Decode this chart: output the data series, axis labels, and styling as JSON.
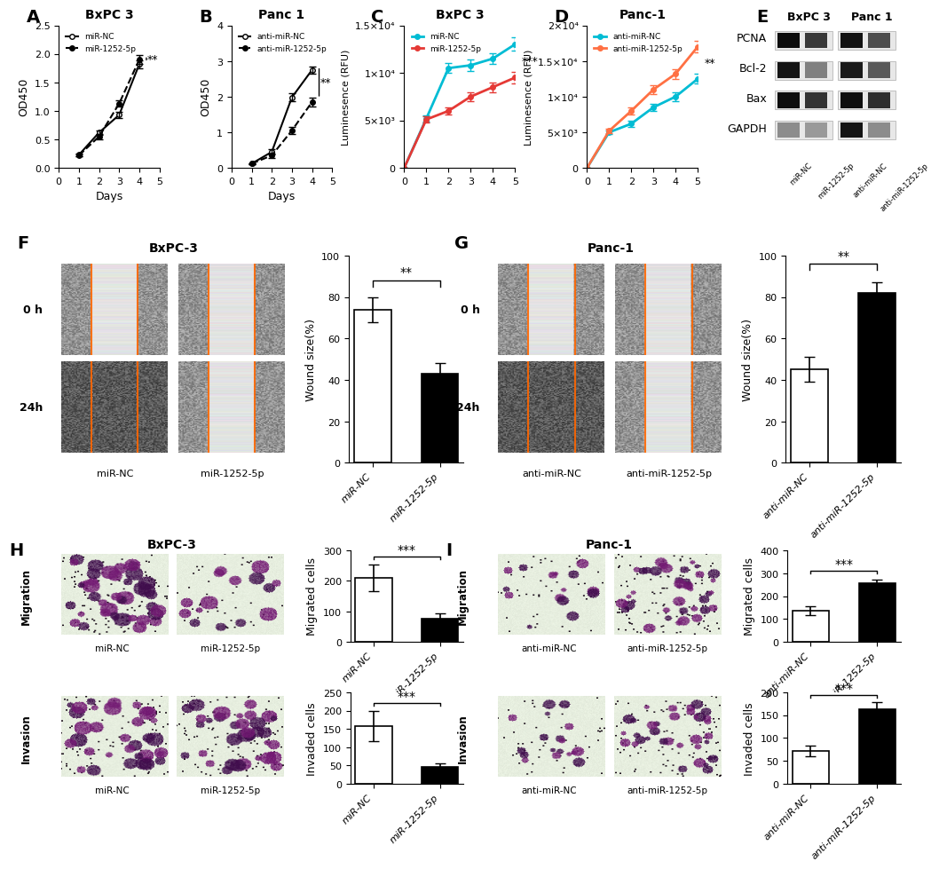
{
  "panel_A": {
    "title": "BxPC 3",
    "xlabel": "Days",
    "ylabel": "OD450",
    "days": [
      1,
      2,
      3,
      4
    ],
    "miR_NC": [
      0.23,
      0.62,
      0.93,
      1.82
    ],
    "miR_NC_err": [
      0.02,
      0.04,
      0.05,
      0.07
    ],
    "miR_1252_5p": [
      0.22,
      0.55,
      1.13,
      1.9
    ],
    "miR_1252_5p_err": [
      0.02,
      0.05,
      0.06,
      0.08
    ],
    "ylim": [
      0,
      2.5
    ],
    "sig": "**",
    "legend": [
      "miR-NC",
      "miR-1252-5p"
    ]
  },
  "panel_B": {
    "title": "Panc 1",
    "xlabel": "Days",
    "ylabel": "OD450",
    "days": [
      1,
      2,
      3,
      4
    ],
    "anti_miR_NC": [
      0.12,
      0.45,
      1.98,
      2.75
    ],
    "anti_miR_NC_err": [
      0.02,
      0.08,
      0.12,
      0.1
    ],
    "anti_miR_1252_5p": [
      0.12,
      0.35,
      1.05,
      1.85
    ],
    "anti_miR_1252_5p_err": [
      0.02,
      0.06,
      0.1,
      0.12
    ],
    "ylim": [
      0,
      4
    ],
    "sig": "**",
    "legend": [
      "anti-miR-NC",
      "anti-miR-1252-5p"
    ]
  },
  "panel_C": {
    "title": "BxPC 3",
    "ylabel": "Luminesence (RFU)",
    "days": [
      0,
      1,
      2,
      3,
      4,
      5
    ],
    "miR_NC": [
      0,
      5200,
      10500,
      10800,
      11500,
      13000
    ],
    "miR_NC_err": [
      0,
      300,
      500,
      600,
      600,
      700
    ],
    "miR_1252_5p": [
      0,
      5100,
      6000,
      7500,
      8500,
      9500
    ],
    "miR_1252_5p_err": [
      0,
      300,
      400,
      500,
      500,
      600
    ],
    "ylim": [
      0,
      15000
    ],
    "yticks": [
      0,
      5000,
      10000,
      15000
    ],
    "yticklabels": [
      "0",
      "5×10³",
      "1×10⁴",
      "1.5×10⁴"
    ],
    "sig": "***",
    "legend": [
      "miR-NC",
      "miR-1252-5p"
    ],
    "colors": [
      "#00bcd4",
      "#e53935"
    ]
  },
  "panel_D": {
    "title": "Panc-1",
    "ylabel": "Luminesence (RFU)",
    "days": [
      0,
      1,
      2,
      3,
      4,
      5
    ],
    "anti_miR_NC": [
      0,
      5000,
      6200,
      8500,
      10000,
      12500
    ],
    "anti_miR_NC_err": [
      0,
      300,
      400,
      500,
      600,
      700
    ],
    "anti_miR_1252_5p": [
      0,
      5200,
      8000,
      11000,
      13200,
      17000
    ],
    "anti_miR_1252_5p_err": [
      0,
      300,
      500,
      600,
      700,
      800
    ],
    "ylim": [
      0,
      20000
    ],
    "yticks": [
      0,
      5000,
      10000,
      15000,
      20000
    ],
    "yticklabels": [
      "0",
      "5×10³",
      "1×10⁴",
      "1.5×10⁴",
      "2×10⁴"
    ],
    "sig": "**",
    "legend": [
      "anti-miR-NC",
      "anti-miR-1252-5p"
    ],
    "colors": [
      "#00bcd4",
      "#ff7043"
    ]
  },
  "panel_F_bar": {
    "categories": [
      "miR-NC",
      "miR-1252-5p"
    ],
    "values": [
      74,
      43
    ],
    "errors": [
      6,
      5
    ],
    "ylabel": "Wound size(%)",
    "ylim": [
      0,
      100
    ],
    "yticks": [
      0,
      20,
      40,
      60,
      80,
      100
    ],
    "colors": [
      "white",
      "black"
    ],
    "sig": "**"
  },
  "panel_G_bar": {
    "categories": [
      "anti-miR-NC",
      "anti-miR-1252-5p"
    ],
    "values": [
      45,
      82
    ],
    "errors": [
      6,
      5
    ],
    "ylabel": "Wound size(%)",
    "ylim": [
      0,
      100
    ],
    "yticks": [
      0,
      20,
      40,
      60,
      80,
      100
    ],
    "colors": [
      "white",
      "black"
    ],
    "sig": "**"
  },
  "panel_H_migration_bar": {
    "categories": [
      "miR-NC",
      "miR-1252-5p"
    ],
    "values": [
      210,
      75
    ],
    "errors": [
      45,
      20
    ],
    "ylabel": "Migrated cells",
    "ylim": [
      0,
      300
    ],
    "yticks": [
      0,
      100,
      200,
      300
    ],
    "colors": [
      "white",
      "black"
    ],
    "sig": "***"
  },
  "panel_H_invasion_bar": {
    "categories": [
      "miR-NC",
      "miR-1252-5p"
    ],
    "values": [
      158,
      47
    ],
    "errors": [
      42,
      8
    ],
    "ylabel": "Invaded cells",
    "ylim": [
      0,
      250
    ],
    "yticks": [
      0,
      50,
      100,
      150,
      200,
      250
    ],
    "colors": [
      "white",
      "black"
    ],
    "sig": "***"
  },
  "panel_I_migration_bar": {
    "categories": [
      "anti-miR-NC",
      "anti-miR-1252-5p"
    ],
    "values": [
      137,
      258
    ],
    "errors": [
      20,
      15
    ],
    "ylabel": "Migrated cells",
    "ylim": [
      0,
      400
    ],
    "yticks": [
      0,
      100,
      200,
      300,
      400
    ],
    "colors": [
      "white",
      "black"
    ],
    "sig": "***"
  },
  "panel_I_invasion_bar": {
    "categories": [
      "anti-miR-NC",
      "anti-miR-1252-5p"
    ],
    "values": [
      72,
      163
    ],
    "errors": [
      12,
      15
    ],
    "ylabel": "Invaded cells",
    "ylim": [
      0,
      200
    ],
    "yticks": [
      0,
      50,
      100,
      150,
      200
    ],
    "colors": [
      "white",
      "black"
    ],
    "sig": "***"
  },
  "bg_color": "#ffffff"
}
